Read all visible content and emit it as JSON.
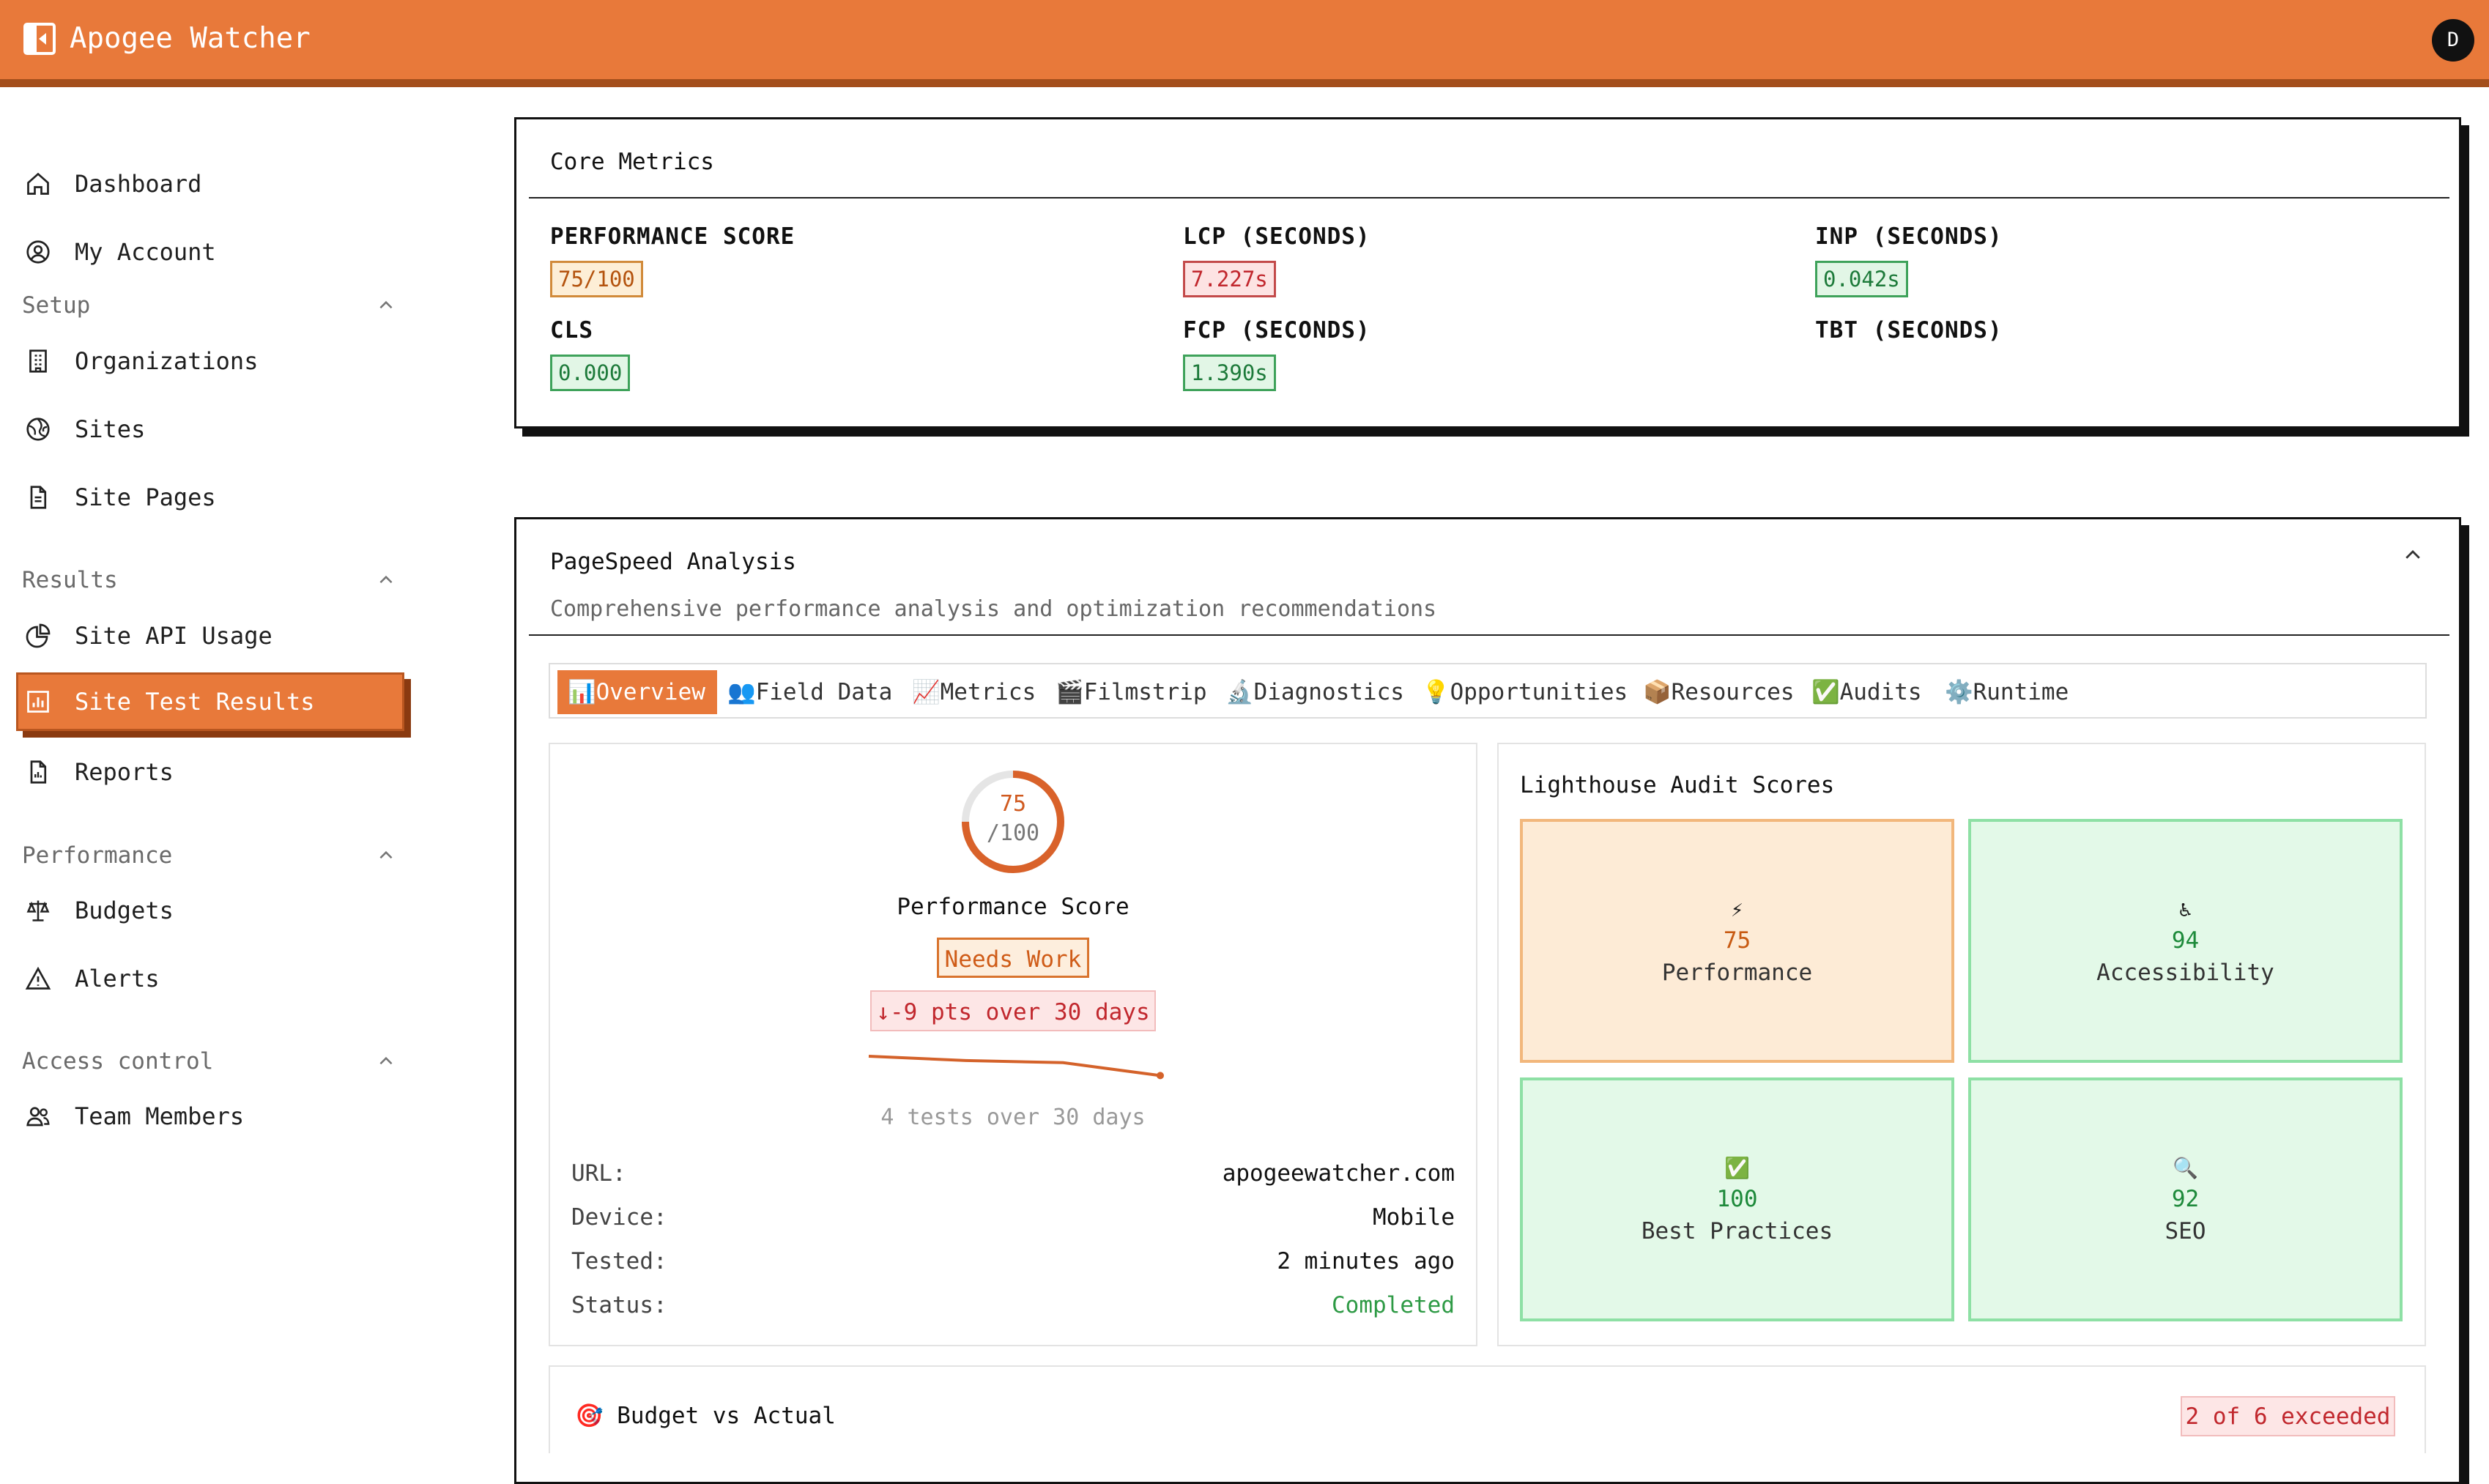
{
  "app": {
    "title": "Apogee Watcher",
    "avatar_initial": "D"
  },
  "sidebar": {
    "top_items": [
      {
        "label": "Dashboard",
        "icon": "home-icon"
      },
      {
        "label": "My Account",
        "icon": "user-circle-icon"
      }
    ],
    "sections": [
      {
        "title": "Setup",
        "items": [
          {
            "label": "Organizations",
            "icon": "building-icon"
          },
          {
            "label": "Sites",
            "icon": "globe-icon"
          },
          {
            "label": "Site Pages",
            "icon": "file-icon"
          }
        ]
      },
      {
        "title": "Results",
        "items": [
          {
            "label": "Site API Usage",
            "icon": "pie-chart-icon"
          },
          {
            "label": "Site Test Results",
            "icon": "bar-chart-icon",
            "active": true
          },
          {
            "label": "Reports",
            "icon": "report-icon"
          }
        ]
      },
      {
        "title": "Performance",
        "items": [
          {
            "label": "Budgets",
            "icon": "scale-icon"
          },
          {
            "label": "Alerts",
            "icon": "warning-icon"
          }
        ]
      },
      {
        "title": "Access control",
        "items": [
          {
            "label": "Team Members",
            "icon": "users-icon"
          }
        ]
      }
    ]
  },
  "core_metrics": {
    "title": "Core Metrics",
    "metrics": [
      {
        "label": "PERFORMANCE SCORE",
        "value": "75/100",
        "status": "warn"
      },
      {
        "label": "LCP (SECONDS)",
        "value": "7.227s",
        "status": "bad"
      },
      {
        "label": "INP (SECONDS)",
        "value": "0.042s",
        "status": "good"
      },
      {
        "label": "CLS",
        "value": "0.000",
        "status": "good"
      },
      {
        "label": "FCP (SECONDS)",
        "value": "1.390s",
        "status": "good"
      },
      {
        "label": "TBT (SECONDS)",
        "value": "",
        "status": "none"
      }
    ]
  },
  "pagespeed": {
    "title": "PageSpeed Analysis",
    "subtitle": "Comprehensive performance analysis and optimization recommendations",
    "tabs": [
      {
        "label": "📊Overview",
        "active": true
      },
      {
        "label": "👥Field Data"
      },
      {
        "label": "📈Metrics"
      },
      {
        "label": "🎬Filmstrip"
      },
      {
        "label": "🔬Diagnostics"
      },
      {
        "label": "💡Opportunities"
      },
      {
        "label": "📦Resources"
      },
      {
        "label": "✅Audits"
      },
      {
        "label": "⚙️Runtime"
      }
    ],
    "overview": {
      "score": "75",
      "score_max": "/100",
      "score_fraction": 0.75,
      "score_label": "Performance Score",
      "badge": "Needs Work",
      "trend": "↓-9 pts over 30 days",
      "sparkline_values": [
        84,
        82,
        81,
        75
      ],
      "sparkline_caption": "4 tests over 30 days",
      "info": [
        {
          "label": "URL:",
          "value": "apogeewatcher.com"
        },
        {
          "label": "Device:",
          "value": "Mobile"
        },
        {
          "label": "Tested:",
          "value": "2 minutes ago"
        },
        {
          "label": "Status:",
          "value": "Completed",
          "color": "#2e9a45"
        }
      ]
    },
    "lighthouse": {
      "title": "Lighthouse Audit Scores",
      "tiles": [
        {
          "emoji": "⚡",
          "value": "75",
          "name": "Performance",
          "tone": "orange"
        },
        {
          "emoji": "♿",
          "value": "94",
          "name": "Accessibility",
          "tone": "green"
        },
        {
          "emoji": "✅",
          "value": "100",
          "name": "Best Practices",
          "tone": "green"
        },
        {
          "emoji": "🔍",
          "value": "92",
          "name": "SEO",
          "tone": "green"
        }
      ]
    },
    "budget": {
      "title": "🎯 Budget vs Actual",
      "badge": "2 of 6 exceeded"
    }
  },
  "colors": {
    "accent": "#e8793a",
    "accent_dark": "#a44f1c"
  }
}
